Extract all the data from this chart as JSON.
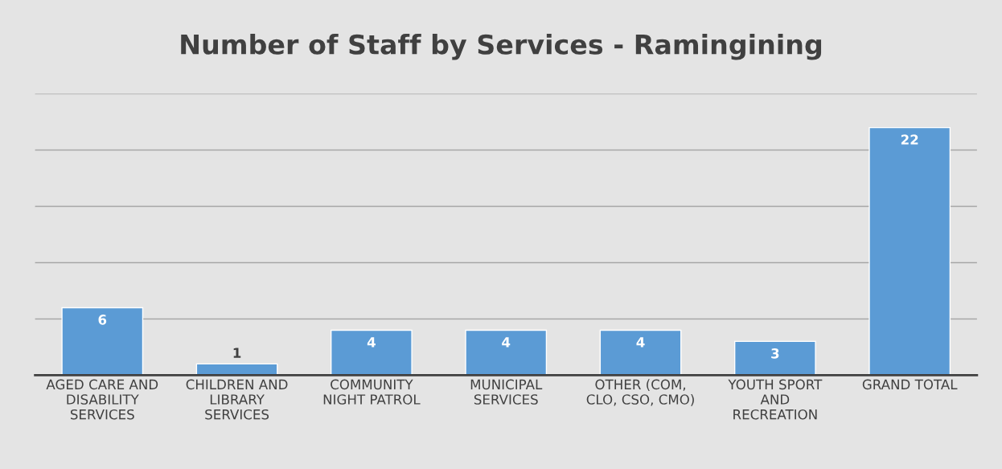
{
  "chart_data": {
    "type": "bar",
    "title": "Number of Staff by Services - Ramingining",
    "categories": [
      "AGED CARE AND\nDISABILITY\nSERVICES",
      "CHILDREN AND\nLIBRARY\nSERVICES",
      "COMMUNITY\nNIGHT PATROL",
      "MUNICIPAL\nSERVICES",
      "OTHER (COM,\nCLO, CSO, CMO)",
      "YOUTH SPORT\nAND\nRECREATION",
      "GRAND TOTAL"
    ],
    "values": [
      6,
      1,
      4,
      4,
      4,
      3,
      22
    ],
    "color": "#5b9bd5",
    "ylim": [
      0,
      25
    ],
    "yticks": [
      {
        "value": 0,
        "label": null
      },
      {
        "value": 5,
        "label": null
      },
      {
        "value": 10,
        "label": null
      },
      {
        "value": 15,
        "label": null
      },
      {
        "value": 20,
        "label": null
      },
      {
        "value": 25,
        "label": null
      }
    ],
    "grid": "y",
    "tick_labels": "x",
    "data_labels": true,
    "legend": false
  }
}
